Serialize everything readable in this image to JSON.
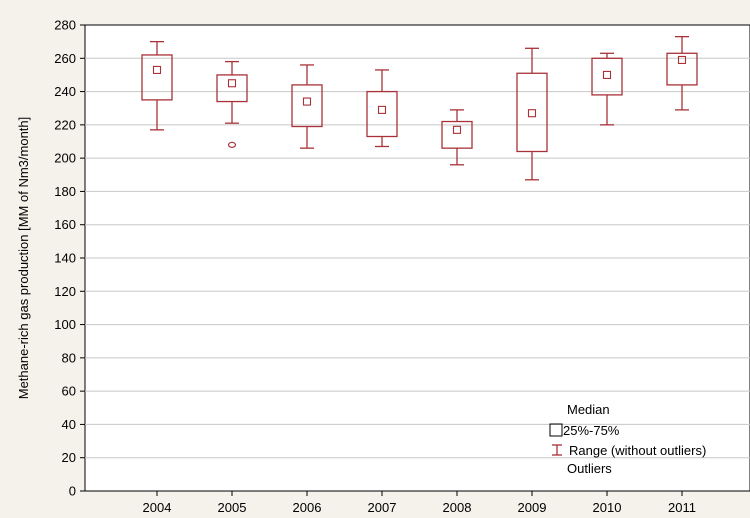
{
  "chart_data": {
    "type": "box",
    "title": "",
    "xlabel": "",
    "ylabel": "Methane-rich gas production [MM of Nm3/month]",
    "ylim": [
      0,
      280
    ],
    "yticks": [
      0,
      20,
      40,
      60,
      80,
      100,
      120,
      140,
      160,
      180,
      200,
      220,
      240,
      260,
      280
    ],
    "grid": true,
    "categories": [
      "2004",
      "2005",
      "2006",
      "2007",
      "2008",
      "2009",
      "2010",
      "2011"
    ],
    "boxes": [
      {
        "category": "2004",
        "median": 253,
        "q1": 235,
        "q3": 262,
        "min": 217,
        "max": 270,
        "outliers": []
      },
      {
        "category": "2005",
        "median": 245,
        "q1": 234,
        "q3": 250,
        "min": 221,
        "max": 258,
        "outliers": [
          208
        ]
      },
      {
        "category": "2006",
        "median": 234,
        "q1": 219,
        "q3": 244,
        "min": 206,
        "max": 256,
        "outliers": []
      },
      {
        "category": "2007",
        "median": 229,
        "q1": 213,
        "q3": 240,
        "min": 207,
        "max": 253,
        "outliers": []
      },
      {
        "category": "2008",
        "median": 217,
        "q1": 206,
        "q3": 222,
        "min": 196,
        "max": 229,
        "outliers": []
      },
      {
        "category": "2009",
        "median": 227,
        "q1": 204,
        "q3": 251,
        "min": 187,
        "max": 266,
        "outliers": []
      },
      {
        "category": "2010",
        "median": 250,
        "q1": 238,
        "q3": 260,
        "min": 220,
        "max": 263,
        "outliers": []
      },
      {
        "category": "2011",
        "median": 259,
        "q1": 244,
        "q3": 263,
        "min": 229,
        "max": 273,
        "outliers": []
      }
    ],
    "legend": {
      "position": "bottom-right",
      "entries": [
        "Median",
        "25%-75%",
        "Range (without outliers)",
        "Outliers"
      ]
    },
    "colors": {
      "box": "#a83238",
      "grid": "#c8c8c8",
      "axis": "#000000",
      "background": "#f5f2ec",
      "plot_background": "#ffffff"
    }
  }
}
